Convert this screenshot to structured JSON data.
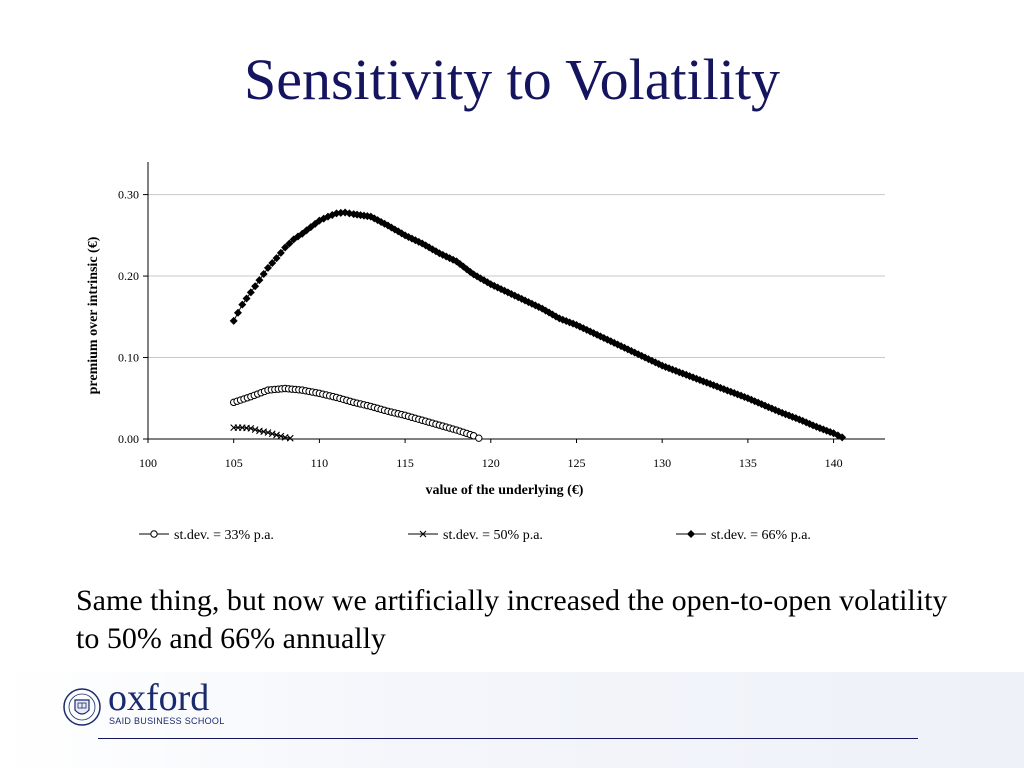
{
  "slide": {
    "title": "Sensitivity to Volatility",
    "body": "Same thing, but now we artificially increased the open-to-open volatility to 50% and 66% annually"
  },
  "logo": {
    "word": "oxford",
    "subtitle": "SAID BUSINESS SCHOOL"
  },
  "chart_data": {
    "type": "scatter",
    "xlabel": "value of the underlying (€)",
    "ylabel": "premium over intrinsic (€)",
    "xlim": [
      100,
      143
    ],
    "ylim": [
      0,
      0.34
    ],
    "x_ticks": [
      "100",
      "105",
      "110",
      "115",
      "120",
      "125",
      "130",
      "135",
      "140"
    ],
    "y_ticks": [
      "0.00",
      "0.10",
      "0.20",
      "0.30"
    ],
    "grid": "horizontal",
    "legend_position": "bottom",
    "series": [
      {
        "name": "st.dev. = 33% p.a.",
        "marker": "circle",
        "points": [
          [
            105.0,
            0.045
          ],
          [
            106.0,
            0.052
          ],
          [
            107.0,
            0.06
          ],
          [
            108.0,
            0.062
          ],
          [
            109.0,
            0.06
          ],
          [
            110.0,
            0.056
          ],
          [
            111.0,
            0.051
          ],
          [
            112.0,
            0.045
          ],
          [
            113.0,
            0.04
          ],
          [
            114.0,
            0.034
          ],
          [
            115.0,
            0.029
          ],
          [
            116.0,
            0.023
          ],
          [
            117.0,
            0.017
          ],
          [
            118.0,
            0.011
          ],
          [
            119.0,
            0.004
          ],
          [
            119.3,
            0.001
          ]
        ]
      },
      {
        "name": "st.dev. = 50% p.a.",
        "marker": "cross",
        "points": [
          [
            105.0,
            0.014
          ],
          [
            105.5,
            0.014
          ],
          [
            106.0,
            0.013
          ],
          [
            106.5,
            0.01
          ],
          [
            107.0,
            0.008
          ],
          [
            107.5,
            0.005
          ],
          [
            108.0,
            0.002
          ],
          [
            108.3,
            0.001
          ]
        ]
      },
      {
        "name": "st.dev. = 66% p.a.",
        "marker": "diamond",
        "points": [
          [
            105.0,
            0.145
          ],
          [
            105.5,
            0.165
          ],
          [
            106.0,
            0.18
          ],
          [
            106.5,
            0.195
          ],
          [
            107.0,
            0.21
          ],
          [
            107.5,
            0.222
          ],
          [
            108.0,
            0.235
          ],
          [
            108.5,
            0.245
          ],
          [
            109.0,
            0.252
          ],
          [
            109.5,
            0.26
          ],
          [
            110.0,
            0.268
          ],
          [
            110.5,
            0.273
          ],
          [
            111.0,
            0.277
          ],
          [
            111.5,
            0.278
          ],
          [
            112.0,
            0.276
          ],
          [
            113.0,
            0.273
          ],
          [
            114.0,
            0.262
          ],
          [
            115.0,
            0.25
          ],
          [
            116.0,
            0.24
          ],
          [
            117.0,
            0.228
          ],
          [
            118.0,
            0.218
          ],
          [
            119.0,
            0.202
          ],
          [
            120.0,
            0.19
          ],
          [
            121.0,
            0.18
          ],
          [
            122.0,
            0.17
          ],
          [
            123.0,
            0.16
          ],
          [
            124.0,
            0.148
          ],
          [
            125.0,
            0.14
          ],
          [
            126.0,
            0.13
          ],
          [
            127.0,
            0.12
          ],
          [
            128.0,
            0.11
          ],
          [
            129.0,
            0.1
          ],
          [
            130.0,
            0.09
          ],
          [
            131.0,
            0.082
          ],
          [
            132.0,
            0.074
          ],
          [
            133.0,
            0.066
          ],
          [
            134.0,
            0.058
          ],
          [
            135.0,
            0.05
          ],
          [
            136.0,
            0.041
          ],
          [
            137.0,
            0.032
          ],
          [
            138.0,
            0.024
          ],
          [
            139.0,
            0.015
          ],
          [
            140.0,
            0.007
          ],
          [
            140.5,
            0.002
          ]
        ]
      }
    ]
  }
}
